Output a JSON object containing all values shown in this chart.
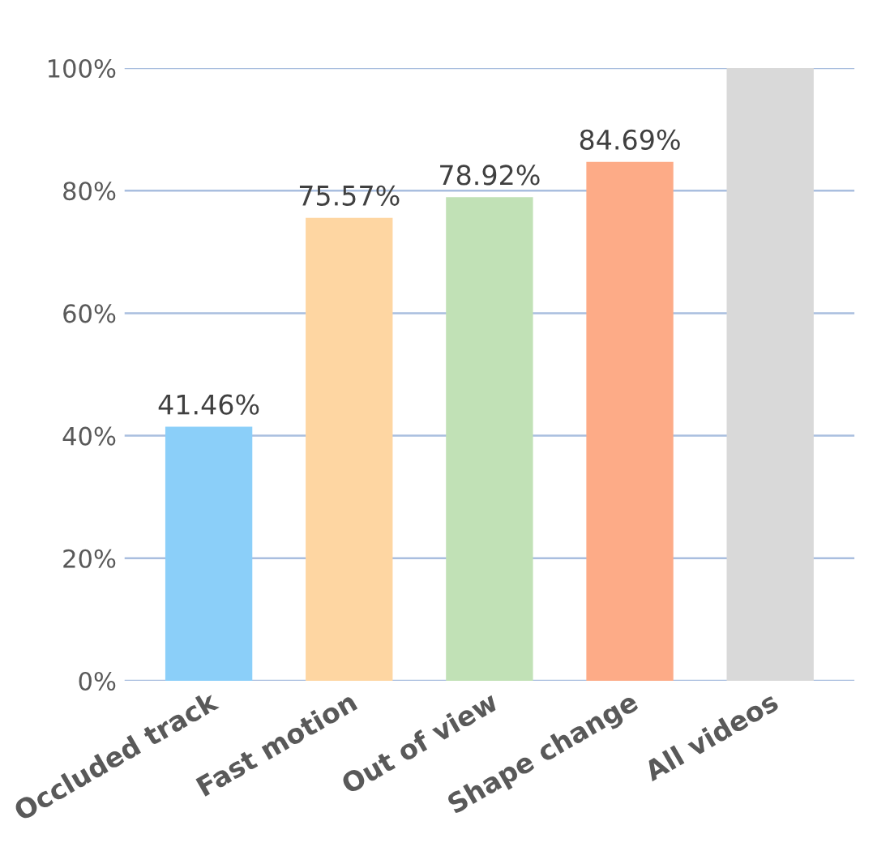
{
  "chart_data": {
    "type": "bar",
    "categories": [
      "Occluded track",
      "Fast motion",
      "Out of view",
      "Shape change",
      "All videos"
    ],
    "values": [
      41.46,
      75.57,
      78.92,
      84.69,
      100
    ],
    "colors": [
      "#8bcff9",
      "#fed6a2",
      "#c1e1b6",
      "#fdab87",
      "#d9d9d9"
    ],
    "value_labels": [
      "41.46%",
      "75.57%",
      "78.92%",
      "84.69%",
      null
    ],
    "ylim": [
      0,
      100
    ],
    "yticks": [
      {
        "value": 0,
        "label": "0%"
      },
      {
        "value": 20,
        "label": "20%"
      },
      {
        "value": 40,
        "label": "40%"
      },
      {
        "value": 60,
        "label": "60%"
      },
      {
        "value": 80,
        "label": "80%"
      },
      {
        "value": 100,
        "label": "100%"
      }
    ],
    "grid": "y",
    "legend": false
  }
}
